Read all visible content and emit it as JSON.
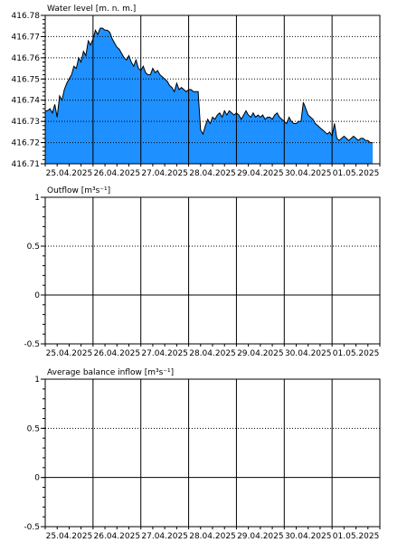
{
  "chart_data": [
    {
      "type": "area",
      "title": "Water level [m. n. m.]",
      "ylim": [
        416.71,
        416.78
      ],
      "y_ticks": [
        "416.71",
        "416.72",
        "416.73",
        "416.74",
        "416.75",
        "416.76",
        "416.77",
        "416.78"
      ],
      "categories": [
        "25.04.2025",
        "26.04.2025",
        "27.04.2025",
        "28.04.2025",
        "29.04.2025",
        "30.04.2025",
        "01.05.2025"
      ],
      "fill_color": "#1e90ff",
      "series": [
        {
          "x": [
            0.0,
            0.05,
            0.1,
            0.15,
            0.2,
            0.25,
            0.3,
            0.35,
            0.4,
            0.45,
            0.5,
            0.55,
            0.6,
            0.65,
            0.7,
            0.75,
            0.8,
            0.85,
            0.9,
            0.95,
            1.0,
            1.05,
            1.1,
            1.15,
            1.2,
            1.25,
            1.3,
            1.35,
            1.4,
            1.45,
            1.5,
            1.55,
            1.6,
            1.65,
            1.7,
            1.75,
            1.8,
            1.85,
            1.9,
            1.95,
            2.0,
            2.05,
            2.1,
            2.15,
            2.2,
            2.25,
            2.3,
            2.35,
            2.4,
            2.45,
            2.5,
            2.55,
            2.6,
            2.65,
            2.7,
            2.75,
            2.8,
            2.85,
            2.9,
            2.95,
            3.0,
            3.05,
            3.1,
            3.15,
            3.2,
            3.25,
            3.3,
            3.35,
            3.4,
            3.45,
            3.5,
            3.55,
            3.6,
            3.65,
            3.7,
            3.75,
            3.8,
            3.85,
            3.9,
            3.95,
            4.0,
            4.05,
            4.1,
            4.15,
            4.2,
            4.25,
            4.3,
            4.35,
            4.4,
            4.45,
            4.5,
            4.55,
            4.6,
            4.65,
            4.7,
            4.75,
            4.8,
            4.85,
            4.9,
            4.95,
            5.0,
            5.05,
            5.1,
            5.15,
            5.2,
            5.25,
            5.3,
            5.35,
            5.4,
            5.45,
            5.5,
            5.55,
            5.6,
            5.65,
            5.7,
            5.75,
            5.8,
            5.85,
            5.9,
            5.95,
            6.0,
            6.05,
            6.1,
            6.15,
            6.2,
            6.25,
            6.3,
            6.35,
            6.4,
            6.45,
            6.5,
            6.55,
            6.6,
            6.65,
            6.7,
            6.75,
            6.8,
            6.85
          ],
          "values": [
            416.735,
            416.735,
            416.736,
            416.734,
            416.738,
            416.732,
            416.742,
            416.74,
            416.745,
            416.748,
            416.75,
            416.752,
            416.756,
            416.755,
            416.76,
            416.758,
            416.763,
            416.761,
            416.768,
            416.766,
            416.769,
            416.773,
            416.771,
            416.774,
            416.774,
            416.773,
            416.773,
            416.772,
            416.769,
            416.767,
            416.765,
            416.764,
            416.762,
            416.76,
            416.759,
            416.761,
            416.758,
            416.756,
            416.759,
            416.755,
            416.754,
            416.756,
            416.753,
            416.752,
            416.752,
            416.755,
            416.753,
            416.754,
            416.752,
            416.751,
            416.75,
            416.749,
            416.747,
            416.746,
            416.744,
            416.748,
            416.745,
            416.746,
            416.745,
            416.744,
            416.745,
            416.745,
            416.744,
            416.744,
            416.744,
            416.726,
            416.724,
            416.728,
            416.731,
            416.729,
            416.732,
            416.731,
            416.733,
            416.734,
            416.732,
            416.735,
            416.733,
            416.735,
            416.734,
            416.733,
            416.734,
            416.733,
            416.731,
            416.733,
            416.735,
            416.733,
            416.732,
            416.734,
            416.732,
            416.733,
            416.732,
            416.733,
            416.731,
            416.732,
            416.732,
            416.731,
            416.733,
            416.734,
            416.732,
            416.731,
            416.73,
            416.729,
            416.732,
            416.73,
            416.729,
            416.729,
            416.73,
            416.73,
            416.739,
            416.736,
            416.733,
            416.732,
            416.731,
            416.729,
            416.728,
            416.727,
            416.726,
            416.725,
            416.724,
            416.725,
            416.723,
            416.729,
            416.722,
            416.721,
            416.722,
            416.723,
            416.722,
            416.721,
            416.722,
            416.723,
            416.722,
            416.721,
            416.722,
            416.722,
            416.721,
            416.721,
            416.72,
            416.72
          ]
        }
      ]
    },
    {
      "type": "line",
      "title": "Outflow [m³s⁻¹]",
      "ylim": [
        -0.5,
        1
      ],
      "y_ticks": [
        "-0.5",
        "0",
        "0.5",
        "1"
      ],
      "categories": [
        "25.04.2025",
        "26.04.2025",
        "27.04.2025",
        "28.04.2025",
        "29.04.2025",
        "30.04.2025",
        "01.05.2025"
      ],
      "series": []
    },
    {
      "type": "line",
      "title": "Average balance inflow  [m³s⁻¹]",
      "ylim": [
        -0.5,
        1
      ],
      "y_ticks": [
        "-0.5",
        "0",
        "0.5",
        "1"
      ],
      "categories": [
        "25.04.2025",
        "26.04.2025",
        "27.04.2025",
        "28.04.2025",
        "29.04.2025",
        "30.04.2025",
        "01.05.2025"
      ],
      "series": []
    }
  ]
}
